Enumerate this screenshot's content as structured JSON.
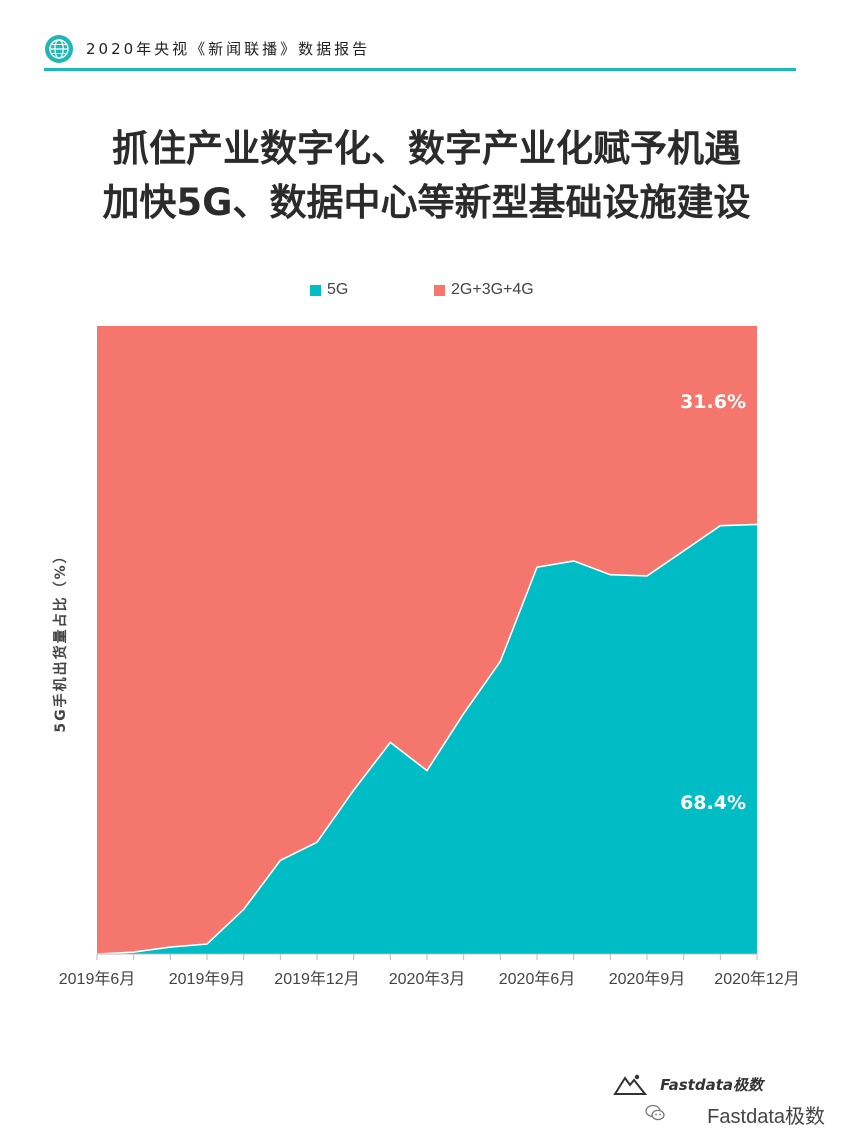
{
  "header": {
    "title": "2020年央视《新闻联播》数据报告",
    "accent_color": "#1fb8b6",
    "icon": "globe-icon"
  },
  "headline": {
    "line1": "抓住产业数字化、数字产业化赋予机遇",
    "line2": "加快5G、数据中心等新型基础设施建设"
  },
  "legend": {
    "items": [
      {
        "label": "5G",
        "color": "#00bcc5"
      },
      {
        "label": "2G+3G+4G",
        "color": "#f4766d"
      }
    ]
  },
  "footer": {
    "brand": "Fastdata极数",
    "account": "Fastdata极数",
    "brand_icon": "mountain-logo-icon",
    "account_icon": "wechat-icon"
  },
  "chart_data": {
    "type": "area",
    "stacked": true,
    "percent": true,
    "ylabel": "5G手机出货量占比（%）",
    "xlabel": "",
    "x": [
      "2019年6月",
      "2019年7月",
      "2019年8月",
      "2019年9月",
      "2019年10月",
      "2019年11月",
      "2019年12月",
      "2020年1月",
      "2020年2月",
      "2020年3月",
      "2020年4月",
      "2020年5月",
      "2020年6月",
      "2020年7月",
      "2020年8月",
      "2020年9月",
      "2020年10月",
      "2020年11月",
      "2020年12月"
    ],
    "tick_labels": [
      "2019年6月",
      "2019年9月",
      "2019年12月",
      "2020年3月",
      "2020年6月",
      "2020年9月",
      "2020年12月"
    ],
    "tick_indices": [
      0,
      3,
      6,
      9,
      12,
      15,
      18
    ],
    "ylim": [
      0,
      100
    ],
    "grid": false,
    "legend_position": "top",
    "series": [
      {
        "name": "5G",
        "color": "#00bcc5",
        "values": [
          0,
          0.3,
          1.1,
          1.6,
          7.1,
          14.9,
          17.8,
          26.1,
          33.7,
          29.2,
          38.3,
          46.6,
          61.6,
          62.6,
          60.4,
          60.2,
          64.2,
          68.2,
          68.4
        ]
      },
      {
        "name": "2G+3G+4G",
        "color": "#f4766d",
        "values": [
          100,
          99.7,
          98.9,
          98.4,
          92.9,
          85.1,
          82.2,
          73.9,
          66.3,
          70.8,
          61.7,
          53.4,
          38.4,
          37.4,
          39.6,
          39.8,
          35.8,
          31.8,
          31.6
        ]
      }
    ],
    "data_labels": [
      {
        "series": "5G",
        "text": "68.4%"
      },
      {
        "series": "2G+3G+4G",
        "text": "31.6%"
      }
    ]
  }
}
